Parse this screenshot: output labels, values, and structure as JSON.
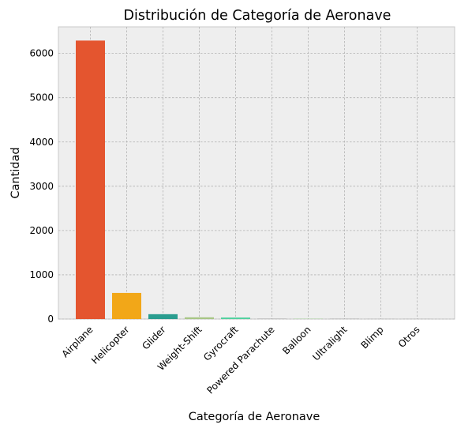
{
  "chart_data": {
    "type": "bar",
    "title": "Distribución de Categoría de Aeronave",
    "xlabel": "Categoría de Aeronave",
    "ylabel": "Cantidad",
    "categories": [
      "Airplane",
      "Helicopter",
      "Glider",
      "Weight-Shift",
      "Gyrocraft",
      "Powered Parachute",
      "Balloon",
      "Ultralight",
      "Blimp",
      "Otros"
    ],
    "values": [
      6290,
      590,
      110,
      40,
      35,
      8,
      5,
      3,
      1,
      1
    ],
    "colors": [
      "#e4552f",
      "#f2a718",
      "#2a9d8f",
      "#a8c686",
      "#52d1a0",
      "#9a9a9a",
      "#8fd47f",
      "#7a7a7a",
      "#7a7a7a",
      "#7a7a7a"
    ],
    "ylim": [
      0,
      6600
    ],
    "yticks": [
      0,
      1000,
      2000,
      3000,
      4000,
      5000,
      6000
    ],
    "grid": true,
    "background": "#eeeeee"
  }
}
